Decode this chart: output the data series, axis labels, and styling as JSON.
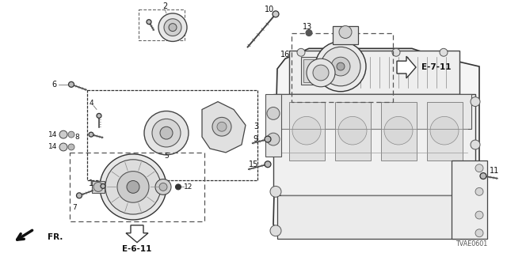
{
  "bg_color": "#ffffff",
  "diagram_code": "TVAE0601",
  "fig_w": 6.4,
  "fig_h": 3.2,
  "xlim": [
    0,
    640
  ],
  "ylim": [
    0,
    320
  ]
}
